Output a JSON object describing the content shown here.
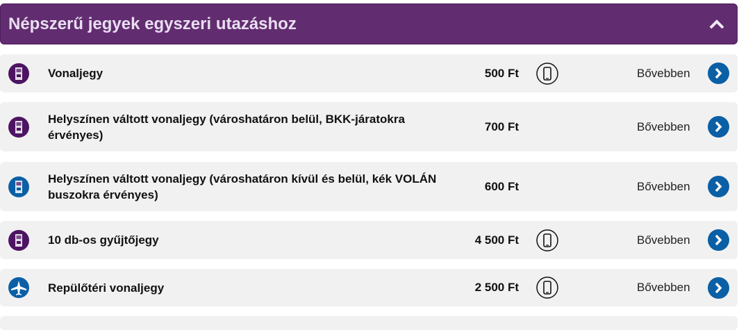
{
  "header": {
    "title": "Népszerű jegyek egyszeri utazáshoz",
    "toggle_icon": "chevron-up-icon"
  },
  "colors": {
    "header": "#622c70",
    "purple_icon": "#4d1463",
    "blue": "#0b5fa5",
    "row_bg": "#f1f1f1"
  },
  "tickets": [
    {
      "name": "Vonaljegy",
      "price": "500 Ft",
      "icon": "ticket-icon",
      "icon_color": "#4d1463",
      "mobile": true,
      "more": "Bővebben"
    },
    {
      "name": "Helyszínen váltott vonaljegy (városhatáron belül, BKK-járatokra érvényes)",
      "price": "700 Ft",
      "icon": "ticket-icon",
      "icon_color": "#4d1463",
      "mobile": false,
      "more": "Bővebben"
    },
    {
      "name": "Helyszínen váltott vonaljegy (városhatáron kívül és belül, kék VOLÁN buszokra érvényes)",
      "price": "600 Ft",
      "icon": "bus-ticket-icon",
      "icon_color": "#0b5fa5",
      "mobile": false,
      "more": "Bővebben"
    },
    {
      "name": "10 db-os gyűjtőjegy",
      "price": "4 500 Ft",
      "icon": "ticket-bundle-icon",
      "icon_color": "#4d1463",
      "mobile": true,
      "more": "Bővebben"
    },
    {
      "name": "Repülőtéri vonaljegy",
      "price": "2 500 Ft",
      "icon": "airplane-icon",
      "icon_color": "#0b5fa5",
      "mobile": true,
      "more": "Bővebben"
    }
  ]
}
